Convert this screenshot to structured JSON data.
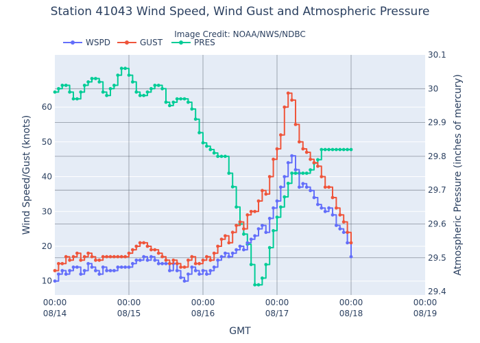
{
  "chart_data": {
    "type": "line",
    "title": "Station 41043 Wind Speed, Wind Gust and Atmospheric Pressure",
    "subtitle": "Image Credit: NOAA/NWS/NDBC",
    "xlabel": "GMT",
    "ylabel": "Wind Speed/Gust (knots)",
    "y2label": "Atmospheric Pressure (inches of mercury)",
    "legend_position": "top-left",
    "grid": true,
    "xlim": [
      0,
      5
    ],
    "ylim": [
      6,
      75
    ],
    "y2lim": [
      29.39,
      30.1
    ],
    "x_ticks": [
      {
        "x": 0,
        "time": "00:00",
        "date": "08/14"
      },
      {
        "x": 1,
        "time": "00:00",
        "date": "08/15"
      },
      {
        "x": 2,
        "time": "00:00",
        "date": "08/16"
      },
      {
        "x": 3,
        "time": "00:00",
        "date": "08/17"
      },
      {
        "x": 4,
        "time": "00:00",
        "date": "08/18"
      },
      {
        "x": 5,
        "time": "00:00",
        "date": "08/19"
      }
    ],
    "y_ticks": [
      10,
      20,
      30,
      40,
      50,
      60
    ],
    "y2_ticks": [
      {
        "value": 29.4,
        "label": "29.4"
      },
      {
        "value": 29.5,
        "label": "29.5"
      },
      {
        "value": 29.6,
        "label": "29.6"
      },
      {
        "value": 29.7,
        "label": "29.7"
      },
      {
        "value": 29.8,
        "label": "29.8"
      },
      {
        "value": 29.9,
        "label": "29.9"
      },
      {
        "value": 30.0,
        "label": "30"
      },
      {
        "value": 30.1,
        "label": "30.1"
      }
    ],
    "series": [
      {
        "name": "WSPD",
        "color": "#636efa",
        "axis": "y",
        "x": [
          0,
          0.05,
          0.1,
          0.15,
          0.2,
          0.25,
          0.3,
          0.35,
          0.4,
          0.45,
          0.5,
          0.55,
          0.6,
          0.65,
          0.7,
          0.75,
          0.8,
          0.85,
          0.9,
          0.95,
          1.0,
          1.05,
          1.1,
          1.15,
          1.2,
          1.25,
          1.3,
          1.35,
          1.4,
          1.45,
          1.5,
          1.55,
          1.6,
          1.65,
          1.7,
          1.75,
          1.8,
          1.85,
          1.9,
          1.95,
          2.0,
          2.05,
          2.1,
          2.15,
          2.2,
          2.25,
          2.3,
          2.35,
          2.4,
          2.45,
          2.5,
          2.55,
          2.6,
          2.65,
          2.7,
          2.75,
          2.8,
          2.85,
          2.9,
          2.95,
          3.0,
          3.05,
          3.1,
          3.15,
          3.2,
          3.25,
          3.3,
          3.35,
          3.4,
          3.45,
          3.5,
          3.55,
          3.6,
          3.65,
          3.7,
          3.75,
          3.8,
          3.85,
          3.9,
          3.95,
          4.0
        ],
        "values": [
          10,
          12,
          13,
          12,
          13,
          14,
          14,
          12,
          13,
          15,
          14,
          13,
          12,
          14,
          13,
          13,
          13,
          14,
          14,
          14,
          14,
          15,
          16,
          16,
          17,
          16,
          17,
          16,
          15,
          15,
          15,
          13,
          15,
          13,
          11,
          10,
          12,
          14,
          13,
          12,
          13,
          12,
          13,
          14,
          16,
          17,
          18,
          17,
          18,
          19,
          20,
          19,
          21,
          22,
          23,
          25,
          26,
          24,
          28,
          31,
          33,
          37,
          40,
          44,
          46,
          42,
          37,
          38,
          37,
          36,
          34,
          32,
          31,
          30,
          31,
          29,
          26,
          25,
          24,
          21,
          17
        ]
      },
      {
        "name": "GUST",
        "color": "#ef553b",
        "axis": "y",
        "x": [
          0,
          0.05,
          0.1,
          0.15,
          0.2,
          0.25,
          0.3,
          0.35,
          0.4,
          0.45,
          0.5,
          0.55,
          0.6,
          0.65,
          0.7,
          0.75,
          0.8,
          0.85,
          0.9,
          0.95,
          1.0,
          1.05,
          1.1,
          1.15,
          1.2,
          1.25,
          1.3,
          1.35,
          1.4,
          1.45,
          1.5,
          1.55,
          1.6,
          1.65,
          1.7,
          1.75,
          1.8,
          1.85,
          1.9,
          1.95,
          2.0,
          2.05,
          2.1,
          2.15,
          2.2,
          2.25,
          2.3,
          2.35,
          2.4,
          2.45,
          2.5,
          2.55,
          2.6,
          2.65,
          2.7,
          2.75,
          2.8,
          2.85,
          2.9,
          2.95,
          3.0,
          3.05,
          3.1,
          3.15,
          3.2,
          3.25,
          3.3,
          3.35,
          3.4,
          3.45,
          3.5,
          3.55,
          3.6,
          3.65,
          3.7,
          3.75,
          3.8,
          3.85,
          3.9,
          3.95,
          4.0
        ],
        "values": [
          13,
          15,
          15,
          17,
          16,
          17,
          18,
          16,
          17,
          18,
          17,
          16,
          16,
          17,
          17,
          17,
          17,
          17,
          17,
          17,
          18,
          19,
          20,
          21,
          21,
          20,
          19,
          19,
          18,
          17,
          16,
          15,
          16,
          15,
          14,
          14,
          16,
          17,
          15,
          15,
          16,
          17,
          16,
          18,
          20,
          22,
          23,
          21,
          24,
          26,
          27,
          25,
          29,
          30,
          30,
          33,
          36,
          35,
          40,
          45,
          48,
          52,
          60,
          64,
          62,
          55,
          50,
          48,
          47,
          45,
          44,
          43,
          40,
          37,
          37,
          34,
          31,
          29,
          27,
          24,
          21
        ]
      },
      {
        "name": "PRES",
        "color": "#00cc96",
        "axis": "y2",
        "x": [
          0,
          0.05,
          0.1,
          0.15,
          0.2,
          0.25,
          0.3,
          0.35,
          0.4,
          0.45,
          0.5,
          0.55,
          0.6,
          0.65,
          0.7,
          0.75,
          0.8,
          0.85,
          0.9,
          0.95,
          1.0,
          1.05,
          1.1,
          1.15,
          1.2,
          1.25,
          1.3,
          1.35,
          1.4,
          1.45,
          1.5,
          1.55,
          1.6,
          1.65,
          1.7,
          1.75,
          1.8,
          1.85,
          1.9,
          1.95,
          2.0,
          2.05,
          2.1,
          2.15,
          2.2,
          2.25,
          2.3,
          2.35,
          2.4,
          2.45,
          2.5,
          2.55,
          2.6,
          2.65,
          2.7,
          2.75,
          2.8,
          2.85,
          2.9,
          2.95,
          3.0,
          3.05,
          3.1,
          3.15,
          3.2,
          3.25,
          3.3,
          3.35,
          3.4,
          3.45,
          3.5,
          3.55,
          3.6,
          3.65,
          3.7,
          3.75,
          3.8,
          3.85,
          3.9,
          3.95,
          4.0
        ],
        "values": [
          29.99,
          30.0,
          30.01,
          30.01,
          29.99,
          29.97,
          29.97,
          29.99,
          30.01,
          30.02,
          30.03,
          30.03,
          30.02,
          29.99,
          29.98,
          30.0,
          30.01,
          30.04,
          30.06,
          30.06,
          30.04,
          30.02,
          29.99,
          29.98,
          29.98,
          29.99,
          30.0,
          30.01,
          30.01,
          30.0,
          29.96,
          29.95,
          29.96,
          29.97,
          29.97,
          29.97,
          29.96,
          29.94,
          29.91,
          29.87,
          29.84,
          29.83,
          29.82,
          29.81,
          29.8,
          29.8,
          29.8,
          29.75,
          29.71,
          29.65,
          29.6,
          29.57,
          29.54,
          29.48,
          29.42,
          29.42,
          29.44,
          29.48,
          29.53,
          29.58,
          29.62,
          29.65,
          29.68,
          29.72,
          29.75,
          29.75,
          29.75,
          29.75,
          29.75,
          29.76,
          29.78,
          29.79,
          29.82,
          29.82,
          29.82,
          29.82,
          29.82,
          29.82,
          29.82,
          29.82,
          29.82
        ]
      }
    ]
  }
}
